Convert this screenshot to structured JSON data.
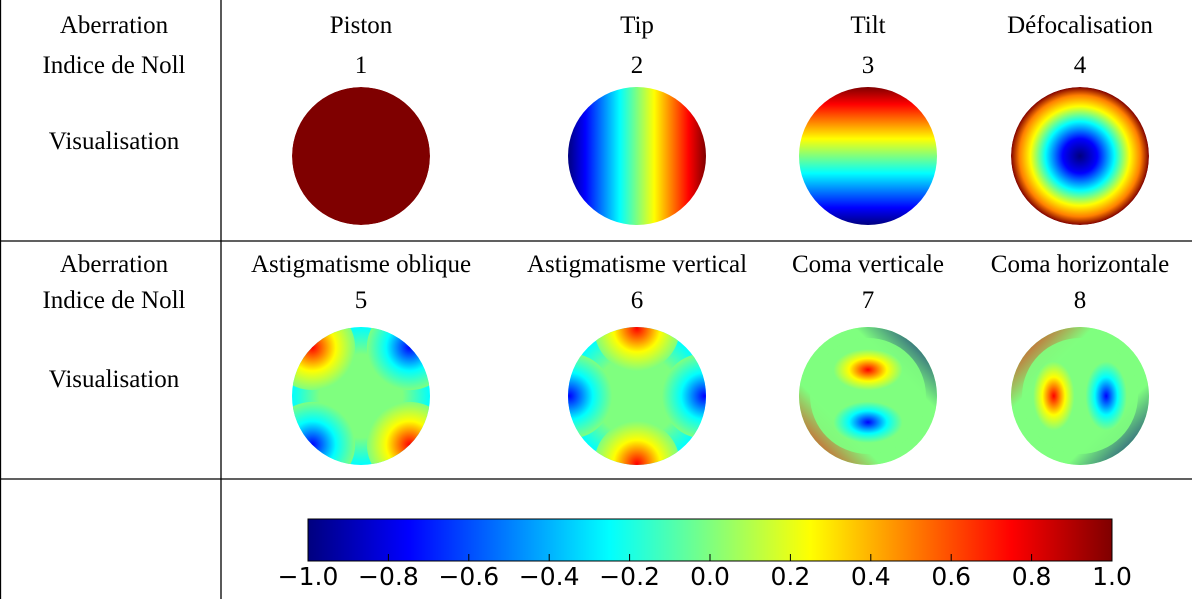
{
  "row_labels": {
    "aberration": "Aberration",
    "noll": "Indice de Noll",
    "visual": "Visualisation"
  },
  "rows": [
    {
      "cells": [
        {
          "name": "Piston",
          "noll": "1",
          "pattern": "piston"
        },
        {
          "name": "Tip",
          "noll": "2",
          "pattern": "tip"
        },
        {
          "name": "Tilt",
          "noll": "3",
          "pattern": "tilt"
        },
        {
          "name": "Défocalisation",
          "noll": "4",
          "pattern": "defocus"
        }
      ]
    },
    {
      "cells": [
        {
          "name": "Astigmatisme oblique",
          "noll": "5",
          "pattern": "astig-oblique"
        },
        {
          "name": "Astigmatisme vertical",
          "noll": "6",
          "pattern": "astig-vertical"
        },
        {
          "name": "Coma verticale",
          "noll": "7",
          "pattern": "coma-vertical"
        },
        {
          "name": "Coma horizontale",
          "noll": "8",
          "pattern": "coma-horizontal"
        }
      ]
    }
  ],
  "colorbar": {
    "colormap": "jet",
    "range": [
      -1.0,
      1.0
    ],
    "ticks": [
      "−1.0",
      "−0.8",
      "−0.6",
      "−0.4",
      "−0.2",
      "0.0",
      "0.2",
      "0.4",
      "0.6",
      "0.8",
      "1.0"
    ]
  },
  "colors": {
    "jet": [
      "#00007f",
      "#0000ff",
      "#007fff",
      "#00ffff",
      "#7fff7f",
      "#ffff00",
      "#ff7f00",
      "#ff0000",
      "#7f0000"
    ]
  }
}
